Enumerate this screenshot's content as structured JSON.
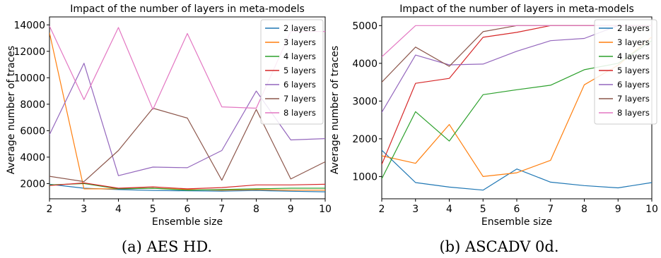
{
  "captions": [
    "(a) AES HD.",
    "(b) ASCADV 0d."
  ],
  "colors": [
    "#1f77b4",
    "#ff7f0e",
    "#2ca02c",
    "#d62728",
    "#9467bd",
    "#8c564b",
    "#e377c2"
  ],
  "chart_data": [
    {
      "type": "line",
      "title": "Impact of the number of layers in meta-models",
      "xlabel": "Ensemble size",
      "ylabel": "Average number of traces",
      "x": [
        2,
        3,
        4,
        5,
        6,
        7,
        8,
        9,
        10
      ],
      "xlim": [
        2,
        10
      ],
      "ylim": [
        850,
        14600
      ],
      "yticks": [
        2000,
        4000,
        6000,
        8000,
        10000,
        12000,
        14000
      ],
      "legend": "top-right",
      "series": [
        {
          "name": "2 layers",
          "values": [
            1950,
            1650,
            1550,
            1480,
            1450,
            1430,
            1480,
            1420,
            1380
          ]
        },
        {
          "name": "3 layers",
          "values": [
            13400,
            1600,
            1600,
            1650,
            1550,
            1500,
            1550,
            1500,
            1500
          ]
        },
        {
          "name": "4 layers",
          "values": [
            1900,
            2000,
            1600,
            1650,
            1500,
            1550,
            1600,
            1650,
            1650
          ]
        },
        {
          "name": "5 layers",
          "values": [
            1850,
            2050,
            1650,
            1750,
            1600,
            1700,
            1900,
            1900,
            1950
          ]
        },
        {
          "name": "6 layers",
          "values": [
            5700,
            11100,
            2600,
            3250,
            3200,
            4500,
            9000,
            5300,
            5400
          ]
        },
        {
          "name": "7 layers",
          "values": [
            2550,
            2150,
            4500,
            7700,
            6950,
            2250,
            7600,
            2350,
            3650
          ]
        },
        {
          "name": "8 layers",
          "values": [
            13900,
            8350,
            13800,
            7600,
            13350,
            7800,
            7700,
            13500,
            13500
          ]
        }
      ]
    },
    {
      "type": "line",
      "title": "Impact of the number of layers in meta-models",
      "xlabel": "Ensemble size",
      "ylabel": "Average number of traces",
      "x": [
        2,
        3,
        4,
        5,
        6,
        7,
        8,
        9,
        10
      ],
      "xlim": [
        2,
        10
      ],
      "ylim": [
        410,
        5230
      ],
      "yticks": [
        1000,
        2000,
        3000,
        4000,
        5000
      ],
      "legend": "top-right",
      "series": [
        {
          "name": "2 layers",
          "values": [
            1700,
            840,
            720,
            640,
            1200,
            850,
            760,
            700,
            840
          ]
        },
        {
          "name": "3 layers",
          "values": [
            1550,
            1350,
            2380,
            1000,
            1100,
            1430,
            3430,
            3950,
            4700
          ]
        },
        {
          "name": "4 layers",
          "values": [
            940,
            2720,
            1940,
            3170,
            3300,
            3420,
            3830,
            4000,
            4600
          ]
        },
        {
          "name": "5 layers",
          "values": [
            1320,
            3470,
            3600,
            4690,
            4820,
            5000,
            5000,
            5000,
            5000
          ]
        },
        {
          "name": "6 layers",
          "values": [
            2700,
            4220,
            3960,
            3980,
            4320,
            4600,
            4660,
            5000,
            5000
          ]
        },
        {
          "name": "7 layers",
          "values": [
            3500,
            4430,
            3920,
            4840,
            5000,
            5000,
            5000,
            5000,
            5000
          ]
        },
        {
          "name": "8 layers",
          "values": [
            4170,
            5000,
            5000,
            5000,
            5000,
            5000,
            5000,
            5000,
            5000
          ]
        }
      ]
    }
  ]
}
